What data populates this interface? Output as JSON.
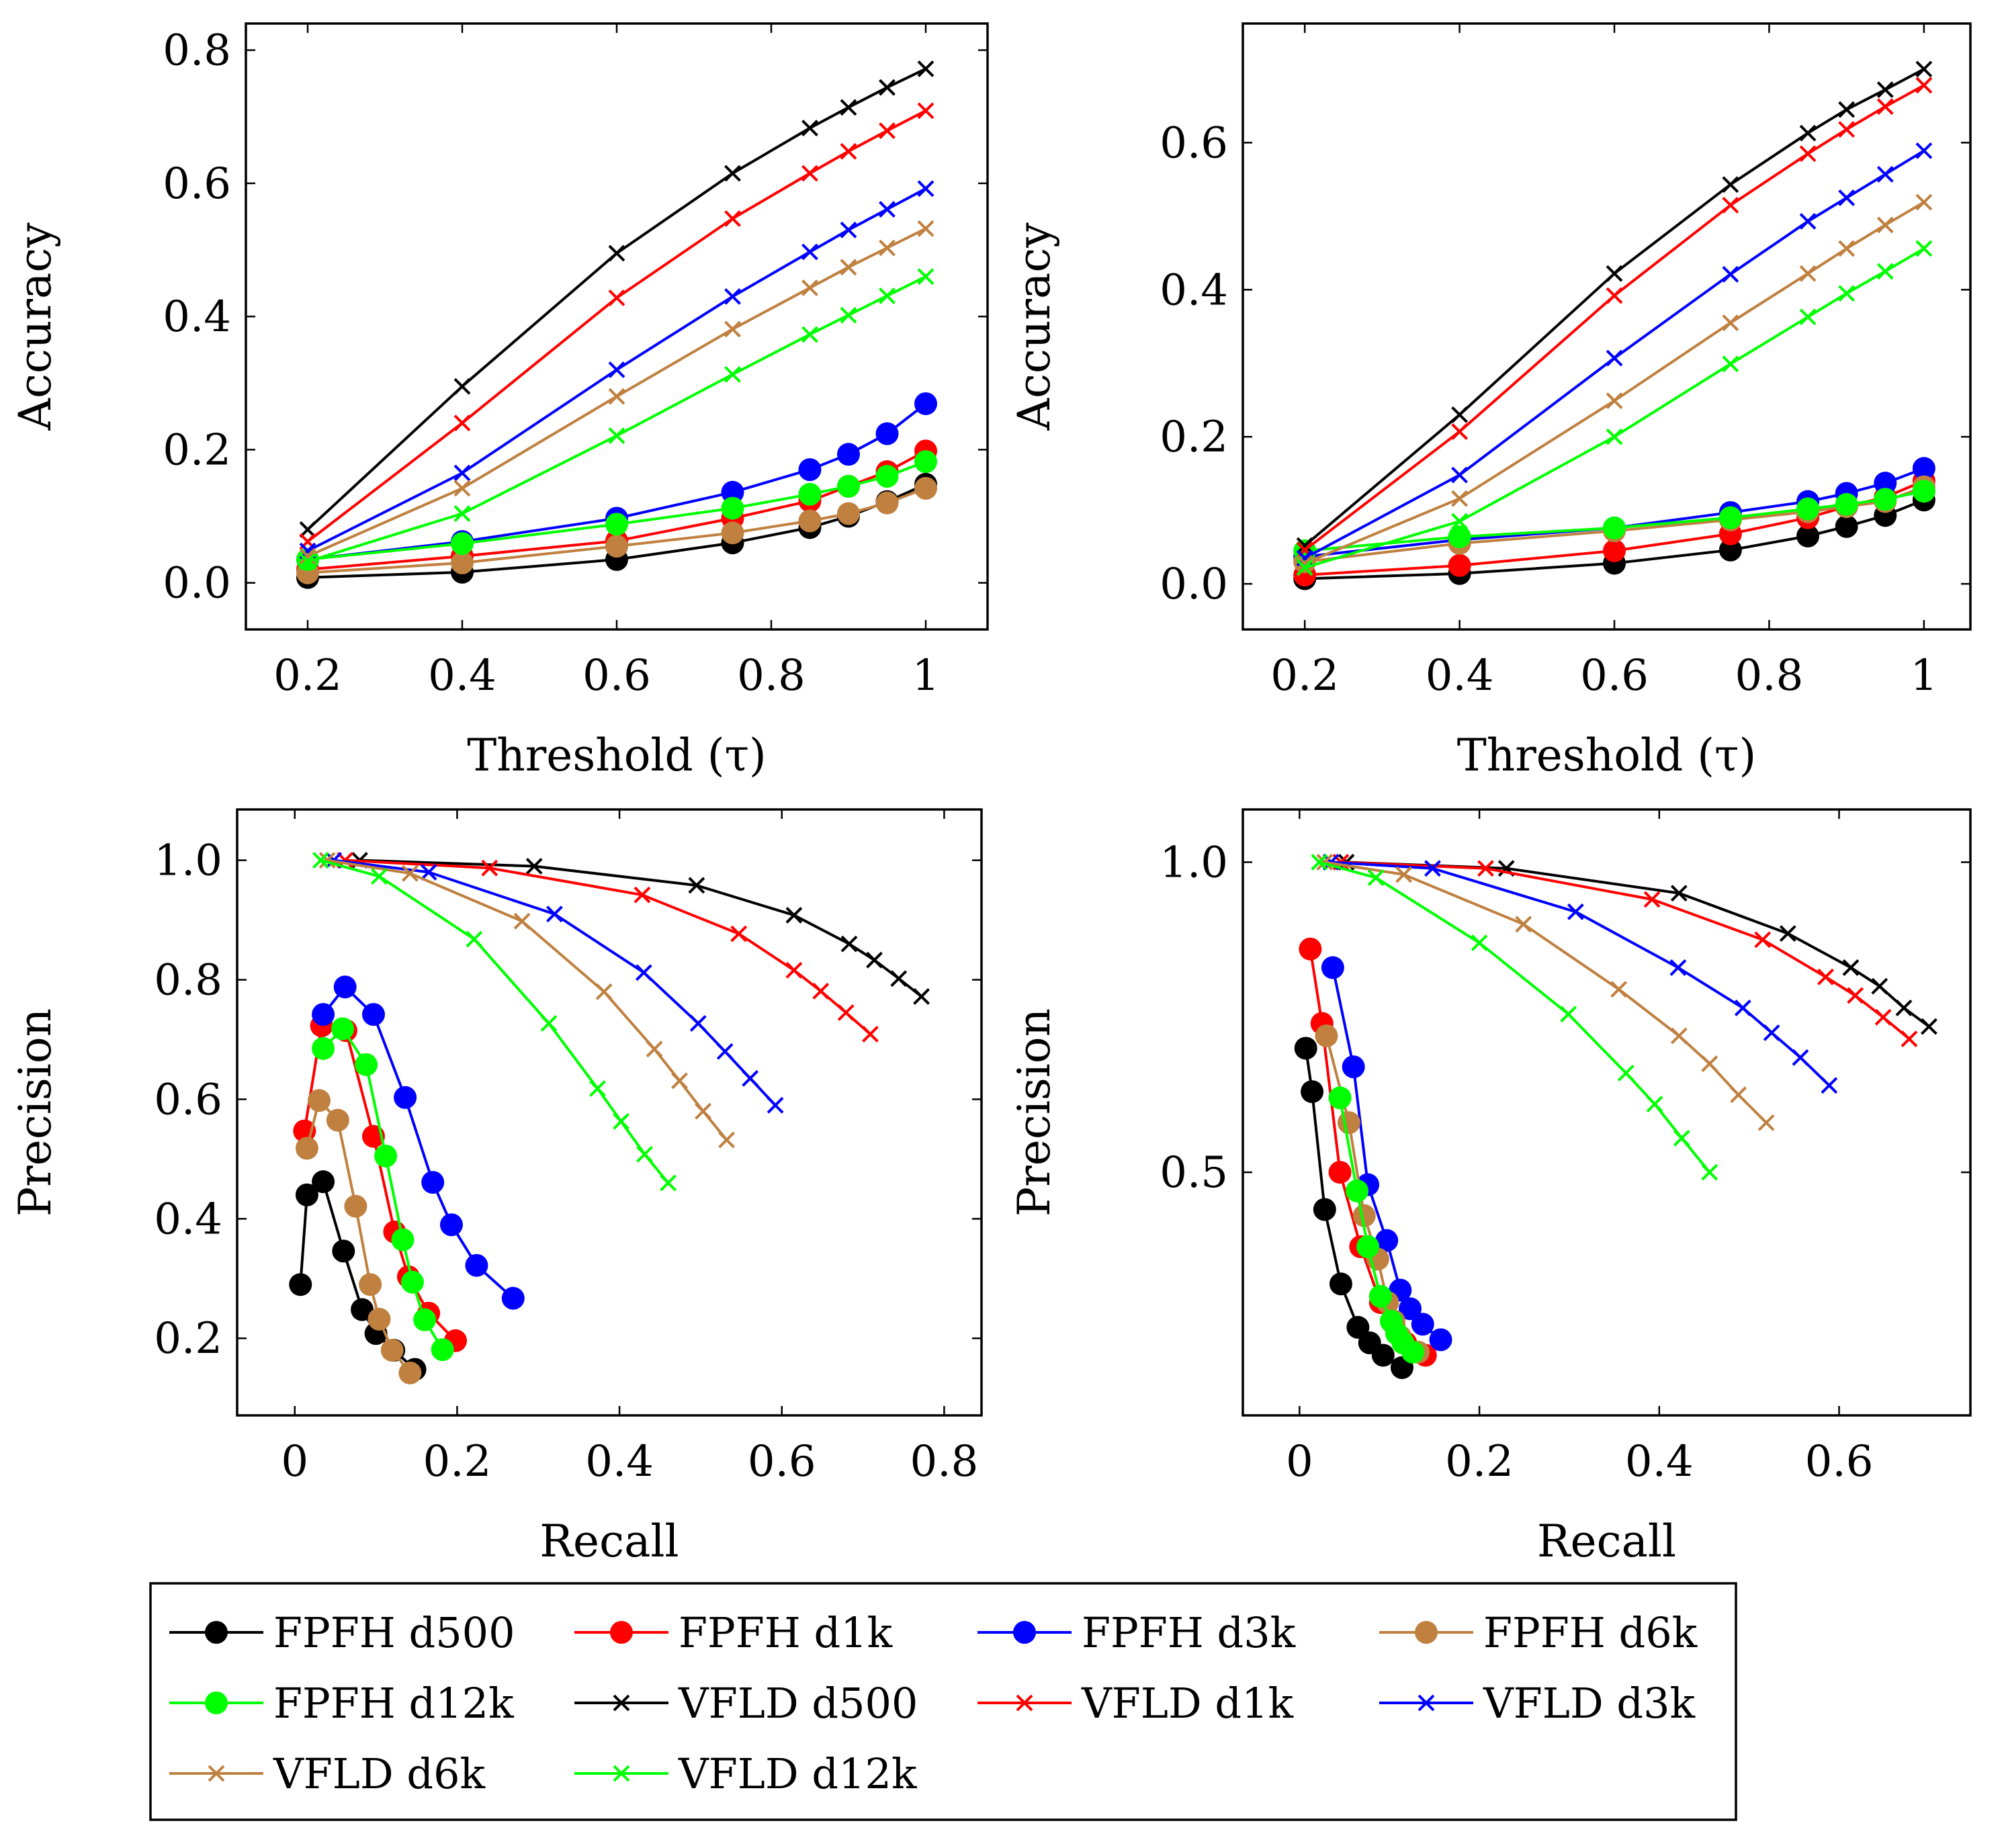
{
  "chart_data": [
    {
      "id": "acc1",
      "type": "line",
      "xlabel": "Threshold (τ)",
      "ylabel": "Accuracy",
      "xlim": [
        0.12,
        1.08
      ],
      "ylim": [
        -0.07,
        0.84
      ],
      "xticks": [
        {
          "v": 0.2,
          "t": "0.2"
        },
        {
          "v": 0.4,
          "t": "0.4"
        },
        {
          "v": 0.6,
          "t": "0.6"
        },
        {
          "v": 0.8,
          "t": "0.8"
        },
        {
          "v": 1.0,
          "t": "1"
        }
      ],
      "yticks": [
        {
          "v": 0.0,
          "t": "0.0"
        },
        {
          "v": 0.2,
          "t": "0.2"
        },
        {
          "v": 0.4,
          "t": "0.4"
        },
        {
          "v": 0.6,
          "t": "0.6"
        },
        {
          "v": 0.8,
          "t": "0.8"
        }
      ],
      "x": [
        0.2,
        0.4,
        0.6,
        0.75,
        0.85,
        0.9,
        0.95,
        1.0
      ],
      "series": [
        {
          "name": "FPFH d500",
          "color": "#000000",
          "marker": "dot",
          "values": [
            0.008,
            0.016,
            0.035,
            0.06,
            0.083,
            0.1,
            0.122,
            0.148
          ]
        },
        {
          "name": "FPFH d1k",
          "color": "#ff0000",
          "marker": "dot",
          "values": [
            0.02,
            0.04,
            0.063,
            0.097,
            0.123,
            0.145,
            0.167,
            0.198
          ]
        },
        {
          "name": "FPFH d3k",
          "color": "#0000ff",
          "marker": "dot",
          "values": [
            0.035,
            0.062,
            0.097,
            0.136,
            0.17,
            0.193,
            0.224,
            0.269
          ]
        },
        {
          "name": "FPFH d6k",
          "color": "#bf8040",
          "marker": "dot",
          "values": [
            0.015,
            0.03,
            0.055,
            0.075,
            0.093,
            0.104,
            0.12,
            0.142
          ]
        },
        {
          "name": "FPFH d12k",
          "color": "#00ff00",
          "marker": "dot",
          "values": [
            0.035,
            0.059,
            0.088,
            0.112,
            0.133,
            0.145,
            0.16,
            0.182
          ]
        },
        {
          "name": "VFLD d500",
          "color": "#000000",
          "marker": "x",
          "values": [
            0.08,
            0.295,
            0.495,
            0.615,
            0.683,
            0.714,
            0.744,
            0.772
          ]
        },
        {
          "name": "VFLD d1k",
          "color": "#ff0000",
          "marker": "x",
          "values": [
            0.062,
            0.24,
            0.428,
            0.547,
            0.615,
            0.648,
            0.679,
            0.709
          ]
        },
        {
          "name": "VFLD d3k",
          "color": "#0000ff",
          "marker": "x",
          "values": [
            0.048,
            0.165,
            0.32,
            0.43,
            0.497,
            0.53,
            0.561,
            0.592
          ]
        },
        {
          "name": "VFLD d6k",
          "color": "#bf8040",
          "marker": "x",
          "values": [
            0.04,
            0.142,
            0.28,
            0.381,
            0.443,
            0.474,
            0.503,
            0.532
          ]
        },
        {
          "name": "VFLD d12k",
          "color": "#00ff00",
          "marker": "x",
          "values": [
            0.032,
            0.104,
            0.221,
            0.313,
            0.373,
            0.402,
            0.431,
            0.46
          ]
        }
      ]
    },
    {
      "id": "acc2",
      "type": "line",
      "xlabel": "Threshold (τ)",
      "ylabel": "Accuracy",
      "xlim": [
        0.12,
        1.06
      ],
      "ylim": [
        -0.062,
        0.762
      ],
      "xticks": [
        {
          "v": 0.2,
          "t": "0.2"
        },
        {
          "v": 0.4,
          "t": "0.4"
        },
        {
          "v": 0.6,
          "t": "0.6"
        },
        {
          "v": 0.8,
          "t": "0.8"
        },
        {
          "v": 1.0,
          "t": "1"
        }
      ],
      "yticks": [
        {
          "v": 0.0,
          "t": "0.0"
        },
        {
          "v": 0.2,
          "t": "0.2"
        },
        {
          "v": 0.4,
          "t": "0.4"
        },
        {
          "v": 0.6,
          "t": "0.6"
        }
      ],
      "x": [
        0.2,
        0.4,
        0.6,
        0.75,
        0.85,
        0.9,
        0.95,
        1.0
      ],
      "series": [
        {
          "name": "FPFH d500",
          "color": "#000000",
          "marker": "dot",
          "values": [
            0.007,
            0.014,
            0.028,
            0.046,
            0.065,
            0.078,
            0.093,
            0.114
          ]
        },
        {
          "name": "FPFH d1k",
          "color": "#ff0000",
          "marker": "dot",
          "values": [
            0.012,
            0.025,
            0.045,
            0.068,
            0.09,
            0.105,
            0.118,
            0.14
          ]
        },
        {
          "name": "FPFH d3k",
          "color": "#0000ff",
          "marker": "dot",
          "values": [
            0.037,
            0.06,
            0.076,
            0.097,
            0.112,
            0.123,
            0.137,
            0.157
          ]
        },
        {
          "name": "FPFH d6k",
          "color": "#bf8040",
          "marker": "dot",
          "values": [
            0.03,
            0.055,
            0.072,
            0.087,
            0.098,
            0.105,
            0.112,
            0.132
          ]
        },
        {
          "name": "FPFH d12k",
          "color": "#00ff00",
          "marker": "dot",
          "values": [
            0.045,
            0.064,
            0.076,
            0.09,
            0.102,
            0.108,
            0.115,
            0.126
          ]
        },
        {
          "name": "VFLD d500",
          "color": "#000000",
          "marker": "x",
          "values": [
            0.052,
            0.23,
            0.422,
            0.543,
            0.613,
            0.645,
            0.672,
            0.7
          ]
        },
        {
          "name": "VFLD d1k",
          "color": "#ff0000",
          "marker": "x",
          "values": [
            0.046,
            0.207,
            0.392,
            0.515,
            0.585,
            0.618,
            0.649,
            0.678
          ]
        },
        {
          "name": "VFLD d3k",
          "color": "#0000ff",
          "marker": "x",
          "values": [
            0.035,
            0.148,
            0.307,
            0.421,
            0.493,
            0.525,
            0.557,
            0.589
          ]
        },
        {
          "name": "VFLD d6k",
          "color": "#bf8040",
          "marker": "x",
          "values": [
            0.028,
            0.116,
            0.249,
            0.355,
            0.422,
            0.456,
            0.488,
            0.519
          ]
        },
        {
          "name": "VFLD d12k",
          "color": "#00ff00",
          "marker": "x",
          "values": [
            0.022,
            0.085,
            0.2,
            0.299,
            0.363,
            0.395,
            0.425,
            0.456
          ]
        }
      ]
    },
    {
      "id": "pr1",
      "type": "line",
      "xlabel": "Recall",
      "ylabel": "Precision",
      "xlim": [
        -0.071,
        0.846
      ],
      "ylim": [
        0.071,
        1.085
      ],
      "xticks": [
        {
          "v": 0,
          "t": "0"
        },
        {
          "v": 0.2,
          "t": "0.2"
        },
        {
          "v": 0.4,
          "t": "0.4"
        },
        {
          "v": 0.6,
          "t": "0.6"
        },
        {
          "v": 0.8,
          "t": "0.8"
        }
      ],
      "yticks": [
        {
          "v": 0.2,
          "t": "0.2"
        },
        {
          "v": 0.4,
          "t": "0.4"
        },
        {
          "v": 0.6,
          "t": "0.6"
        },
        {
          "v": 0.8,
          "t": "0.8"
        },
        {
          "v": 1.0,
          "t": "1.0"
        }
      ],
      "series": [
        {
          "name": "FPFH d500",
          "color": "#000000",
          "marker": "dot",
          "x": [
            0.007,
            0.015,
            0.035,
            0.06,
            0.083,
            0.1,
            0.122,
            0.148
          ],
          "y": [
            0.29,
            0.44,
            0.462,
            0.346,
            0.248,
            0.208,
            0.18,
            0.148
          ]
        },
        {
          "name": "FPFH d1k",
          "color": "#ff0000",
          "marker": "dot",
          "x": [
            0.012,
            0.033,
            0.063,
            0.097,
            0.123,
            0.14,
            0.165,
            0.198
          ],
          "y": [
            0.547,
            0.723,
            0.715,
            0.538,
            0.378,
            0.303,
            0.242,
            0.196
          ]
        },
        {
          "name": "FPFH d3k",
          "color": "#0000ff",
          "marker": "dot",
          "x": [
            0.035,
            0.062,
            0.097,
            0.136,
            0.17,
            0.193,
            0.224,
            0.269
          ],
          "y": [
            0.742,
            0.788,
            0.742,
            0.603,
            0.461,
            0.39,
            0.322,
            0.267
          ]
        },
        {
          "name": "FPFH d6k",
          "color": "#bf8040",
          "marker": "dot",
          "x": [
            0.015,
            0.03,
            0.053,
            0.075,
            0.093,
            0.104,
            0.12,
            0.142
          ],
          "y": [
            0.518,
            0.598,
            0.565,
            0.421,
            0.29,
            0.232,
            0.18,
            0.142
          ]
        },
        {
          "name": "FPFH d12k",
          "color": "#00ff00",
          "marker": "dot",
          "x": [
            0.035,
            0.059,
            0.088,
            0.112,
            0.133,
            0.145,
            0.16,
            0.182
          ],
          "y": [
            0.685,
            0.718,
            0.658,
            0.505,
            0.365,
            0.294,
            0.231,
            0.181
          ]
        },
        {
          "name": "VFLD d500",
          "color": "#000000",
          "marker": "x",
          "x": [
            0.08,
            0.295,
            0.495,
            0.615,
            0.683,
            0.714,
            0.744,
            0.772
          ],
          "y": [
            1.0,
            0.99,
            0.958,
            0.908,
            0.86,
            0.833,
            0.802,
            0.772
          ]
        },
        {
          "name": "VFLD d1k",
          "color": "#ff0000",
          "marker": "x",
          "x": [
            0.062,
            0.24,
            0.428,
            0.547,
            0.615,
            0.648,
            0.679,
            0.709
          ],
          "y": [
            1.0,
            0.987,
            0.942,
            0.877,
            0.816,
            0.781,
            0.745,
            0.709
          ]
        },
        {
          "name": "VFLD d3k",
          "color": "#0000ff",
          "marker": "x",
          "x": [
            0.048,
            0.165,
            0.32,
            0.43,
            0.497,
            0.53,
            0.561,
            0.592
          ],
          "y": [
            1.0,
            0.98,
            0.91,
            0.812,
            0.727,
            0.68,
            0.635,
            0.59
          ]
        },
        {
          "name": "VFLD d6k",
          "color": "#bf8040",
          "marker": "x",
          "x": [
            0.04,
            0.142,
            0.28,
            0.381,
            0.443,
            0.474,
            0.503,
            0.532
          ],
          "y": [
            1.0,
            0.978,
            0.898,
            0.78,
            0.684,
            0.631,
            0.58,
            0.532
          ]
        },
        {
          "name": "VFLD d12k",
          "color": "#00ff00",
          "marker": "x",
          "x": [
            0.032,
            0.104,
            0.221,
            0.313,
            0.373,
            0.402,
            0.431,
            0.46
          ],
          "y": [
            1.0,
            0.973,
            0.868,
            0.727,
            0.618,
            0.563,
            0.508,
            0.46
          ]
        }
      ]
    },
    {
      "id": "pr2",
      "type": "line",
      "xlabel": "Recall",
      "ylabel": "Precision",
      "xlim": [
        -0.063,
        0.746
      ],
      "ylim": [
        0.108,
        1.085
      ],
      "xticks": [
        {
          "v": 0,
          "t": "0"
        },
        {
          "v": 0.2,
          "t": "0.2"
        },
        {
          "v": 0.4,
          "t": "0.4"
        },
        {
          "v": 0.6,
          "t": "0.6"
        }
      ],
      "yticks": [
        {
          "v": 0.5,
          "t": "0.5"
        },
        {
          "v": 1.0,
          "t": "1.0"
        }
      ],
      "series": [
        {
          "name": "FPFH d500",
          "color": "#000000",
          "marker": "dot",
          "x": [
            0.007,
            0.014,
            0.028,
            0.046,
            0.065,
            0.078,
            0.093,
            0.114
          ],
          "y": [
            0.7,
            0.63,
            0.44,
            0.32,
            0.25,
            0.225,
            0.205,
            0.185
          ]
        },
        {
          "name": "FPFH d1k",
          "color": "#ff0000",
          "marker": "dot",
          "x": [
            0.012,
            0.025,
            0.045,
            0.068,
            0.09,
            0.105,
            0.118,
            0.14
          ],
          "y": [
            0.86,
            0.74,
            0.5,
            0.38,
            0.29,
            0.255,
            0.225,
            0.205
          ]
        },
        {
          "name": "FPFH d3k",
          "color": "#0000ff",
          "marker": "dot",
          "x": [
            0.037,
            0.06,
            0.076,
            0.097,
            0.112,
            0.123,
            0.137,
            0.157
          ],
          "y": [
            0.83,
            0.67,
            0.48,
            0.39,
            0.31,
            0.28,
            0.255,
            0.23
          ]
        },
        {
          "name": "FPFH d6k",
          "color": "#bf8040",
          "marker": "dot",
          "x": [
            0.03,
            0.055,
            0.072,
            0.087,
            0.098,
            0.105,
            0.112,
            0.132
          ],
          "y": [
            0.72,
            0.58,
            0.43,
            0.36,
            0.29,
            0.26,
            0.235,
            0.21
          ]
        },
        {
          "name": "FPFH d12k",
          "color": "#00ff00",
          "marker": "dot",
          "x": [
            0.045,
            0.064,
            0.076,
            0.09,
            0.102,
            0.108,
            0.115,
            0.126
          ],
          "y": [
            0.62,
            0.47,
            0.38,
            0.3,
            0.26,
            0.24,
            0.225,
            0.21
          ]
        },
        {
          "name": "VFLD d500",
          "color": "#000000",
          "marker": "x",
          "x": [
            0.052,
            0.23,
            0.422,
            0.543,
            0.613,
            0.645,
            0.672,
            0.7
          ],
          "y": [
            1.0,
            0.99,
            0.95,
            0.885,
            0.83,
            0.8,
            0.765,
            0.735
          ]
        },
        {
          "name": "VFLD d1k",
          "color": "#ff0000",
          "marker": "x",
          "x": [
            0.046,
            0.207,
            0.392,
            0.515,
            0.585,
            0.618,
            0.649,
            0.678
          ],
          "y": [
            1.0,
            0.99,
            0.94,
            0.875,
            0.815,
            0.785,
            0.75,
            0.715
          ]
        },
        {
          "name": "VFLD d3k",
          "color": "#0000ff",
          "marker": "x",
          "x": [
            0.035,
            0.148,
            0.307,
            0.421,
            0.493,
            0.525,
            0.557,
            0.589
          ],
          "y": [
            1.0,
            0.99,
            0.92,
            0.83,
            0.765,
            0.725,
            0.685,
            0.64
          ]
        },
        {
          "name": "VFLD d6k",
          "color": "#bf8040",
          "marker": "x",
          "x": [
            0.028,
            0.116,
            0.249,
            0.355,
            0.422,
            0.456,
            0.488,
            0.519
          ],
          "y": [
            1.0,
            0.98,
            0.9,
            0.795,
            0.72,
            0.675,
            0.625,
            0.58
          ]
        },
        {
          "name": "VFLD d12k",
          "color": "#00ff00",
          "marker": "x",
          "x": [
            0.022,
            0.085,
            0.2,
            0.299,
            0.363,
            0.395,
            0.425,
            0.456
          ],
          "y": [
            1.0,
            0.975,
            0.87,
            0.755,
            0.66,
            0.61,
            0.555,
            0.5
          ]
        }
      ]
    }
  ],
  "legend": {
    "items": [
      {
        "name": "FPFH d500",
        "color": "#000000",
        "marker": "dot"
      },
      {
        "name": "FPFH d1k",
        "color": "#ff0000",
        "marker": "dot"
      },
      {
        "name": "FPFH d3k",
        "color": "#0000ff",
        "marker": "dot"
      },
      {
        "name": "FPFH d6k",
        "color": "#bf8040",
        "marker": "dot"
      },
      {
        "name": "FPFH d12k",
        "color": "#00ff00",
        "marker": "dot"
      },
      {
        "name": "VFLD d500",
        "color": "#000000",
        "marker": "x"
      },
      {
        "name": "VFLD d1k",
        "color": "#ff0000",
        "marker": "x"
      },
      {
        "name": "VFLD d3k",
        "color": "#0000ff",
        "marker": "x"
      },
      {
        "name": "VFLD d6k",
        "color": "#bf8040",
        "marker": "x"
      },
      {
        "name": "VFLD d12k",
        "color": "#00ff00",
        "marker": "x"
      }
    ]
  }
}
